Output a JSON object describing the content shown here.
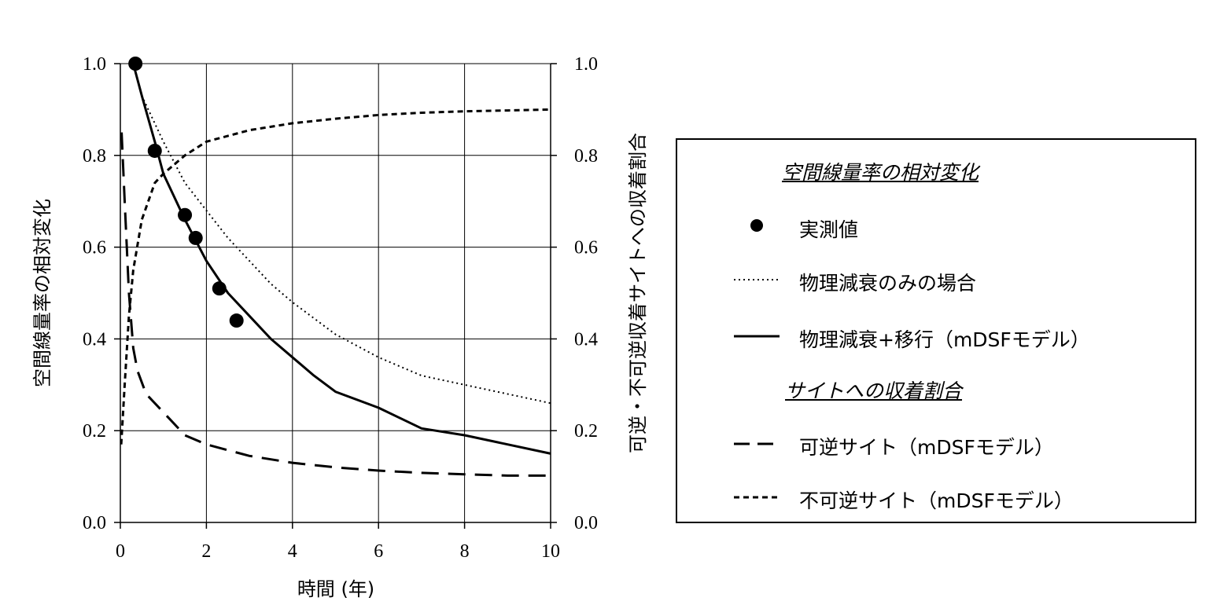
{
  "chart_data": {
    "type": "line",
    "xlabel": "時間 (年)",
    "ylabel_left": "空間線量率の相対変化",
    "ylabel_right": "可逆・不可逆収着サイトへの収着割合",
    "xlim": [
      0,
      10
    ],
    "ylim_left": [
      0,
      1.0
    ],
    "ylim_right": [
      0,
      1.0
    ],
    "x_ticks": [
      "0",
      "2",
      "4",
      "6",
      "8",
      "10"
    ],
    "y_ticks_left": [
      "0.0",
      "0.2",
      "0.4",
      "0.6",
      "0.8",
      "1.0"
    ],
    "y_ticks_right": [
      "0.0",
      "0.2",
      "0.4",
      "0.6",
      "0.8",
      "1.0"
    ],
    "grid": true,
    "legend_placement": "right",
    "series": [
      {
        "name": "実測値",
        "style": "markers",
        "axis": "left",
        "color": "#000000",
        "points": [
          [
            0.35,
            1.0
          ],
          [
            0.8,
            0.81
          ],
          [
            1.5,
            0.67
          ],
          [
            1.75,
            0.62
          ],
          [
            2.3,
            0.51
          ],
          [
            2.7,
            0.44
          ]
        ]
      },
      {
        "name": "物理減衰のみの場合",
        "style": "dotted",
        "axis": "left",
        "color": "#000000",
        "points": [
          [
            0.3,
            1.0
          ],
          [
            0.5,
            0.93
          ],
          [
            1.0,
            0.83
          ],
          [
            1.5,
            0.74
          ],
          [
            2.0,
            0.68
          ],
          [
            2.5,
            0.62
          ],
          [
            3.0,
            0.57
          ],
          [
            3.5,
            0.52
          ],
          [
            4.0,
            0.48
          ],
          [
            5.0,
            0.41
          ],
          [
            6.0,
            0.36
          ],
          [
            7.0,
            0.32
          ],
          [
            8.0,
            0.3
          ],
          [
            9.0,
            0.28
          ],
          [
            10.0,
            0.26
          ]
        ]
      },
      {
        "name": "物理減衰+移行（mDSFモデル）",
        "style": "solid",
        "axis": "left",
        "color": "#000000",
        "points": [
          [
            0.3,
            1.0
          ],
          [
            0.5,
            0.93
          ],
          [
            0.8,
            0.83
          ],
          [
            1.0,
            0.76
          ],
          [
            1.5,
            0.66
          ],
          [
            2.0,
            0.57
          ],
          [
            2.5,
            0.5
          ],
          [
            3.0,
            0.45
          ],
          [
            3.5,
            0.4
          ],
          [
            4.0,
            0.36
          ],
          [
            4.5,
            0.32
          ],
          [
            5.0,
            0.285
          ],
          [
            6.0,
            0.25
          ],
          [
            7.0,
            0.205
          ],
          [
            8.0,
            0.19
          ],
          [
            9.0,
            0.17
          ],
          [
            10.0,
            0.15
          ]
        ]
      },
      {
        "name": "可逆サイト（mDSFモデル）",
        "style": "long-dash",
        "axis": "right",
        "color": "#000000",
        "points": [
          [
            0.03,
            0.85
          ],
          [
            0.1,
            0.7
          ],
          [
            0.2,
            0.5
          ],
          [
            0.3,
            0.38
          ],
          [
            0.4,
            0.33
          ],
          [
            0.6,
            0.28
          ],
          [
            1.0,
            0.24
          ],
          [
            1.5,
            0.19
          ],
          [
            2.0,
            0.17
          ],
          [
            3.0,
            0.145
          ],
          [
            4.0,
            0.13
          ],
          [
            5.0,
            0.12
          ],
          [
            6.0,
            0.113
          ],
          [
            7.0,
            0.108
          ],
          [
            8.0,
            0.105
          ],
          [
            9.0,
            0.102
          ],
          [
            10.0,
            0.102
          ]
        ]
      },
      {
        "name": "不可逆サイト（mDSFモデル）",
        "style": "short-dash",
        "axis": "right",
        "color": "#000000",
        "points": [
          [
            0.02,
            0.17
          ],
          [
            0.1,
            0.3
          ],
          [
            0.2,
            0.45
          ],
          [
            0.3,
            0.55
          ],
          [
            0.5,
            0.66
          ],
          [
            0.8,
            0.74
          ],
          [
            1.0,
            0.76
          ],
          [
            1.5,
            0.8
          ],
          [
            2.0,
            0.83
          ],
          [
            3.0,
            0.855
          ],
          [
            4.0,
            0.87
          ],
          [
            5.0,
            0.88
          ],
          [
            6.0,
            0.888
          ],
          [
            7.0,
            0.893
          ],
          [
            8.0,
            0.896
          ],
          [
            9.0,
            0.898
          ],
          [
            10.0,
            0.9
          ]
        ]
      }
    ]
  },
  "legend": {
    "heading_dose": "空間線量率の相対変化",
    "heading_sites": "サイトへの収着割合"
  }
}
